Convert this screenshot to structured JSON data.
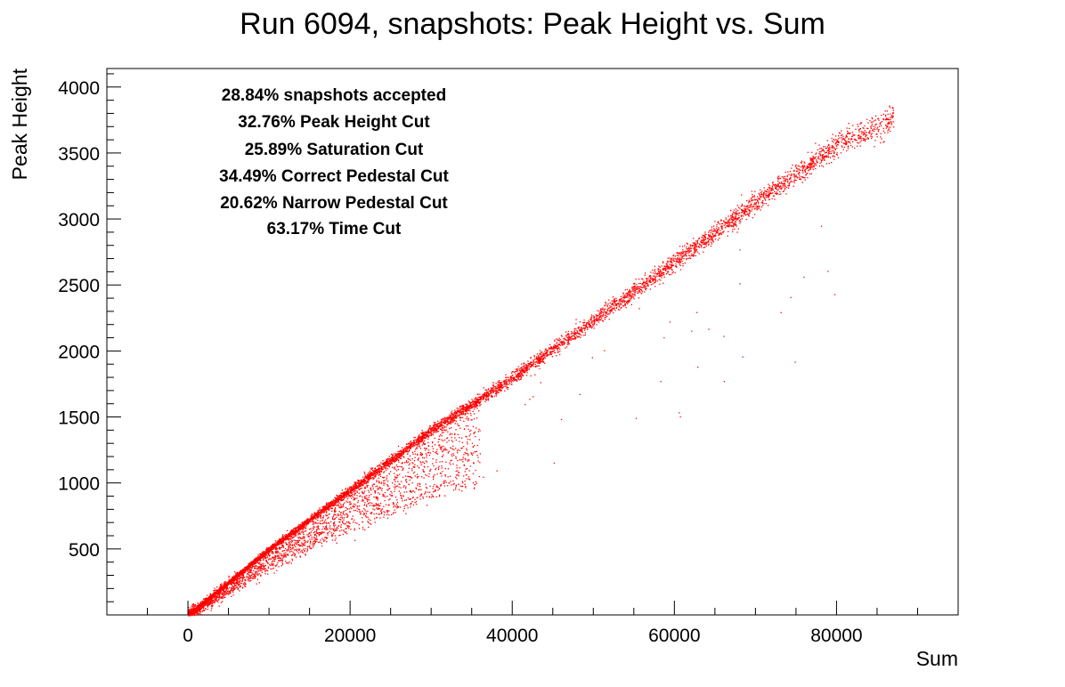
{
  "chart_data": {
    "type": "scatter",
    "title": "Run 6094, snapshots: Peak Height vs. Sum",
    "xlabel": "Sum",
    "ylabel": "Peak Height",
    "xlim": [
      -10000,
      95000
    ],
    "ylim": [
      0,
      4140
    ],
    "x_ticks": [
      0,
      20000,
      40000,
      60000,
      80000
    ],
    "x_tick_labels": [
      "0",
      "20000",
      "40000",
      "60000",
      "80000"
    ],
    "y_ticks": [
      500,
      1000,
      1500,
      2000,
      2500,
      3000,
      3500,
      4000
    ],
    "y_tick_labels": [
      "500",
      "1000",
      "1500",
      "2000",
      "2500",
      "3000",
      "3500",
      "4000"
    ],
    "grid": false,
    "legend": "none",
    "marker_color": "#ff0000",
    "annotations": [
      "28.84% snapshots accepted",
      "32.76% Peak Height Cut",
      "25.89% Saturation Cut",
      "34.49% Correct Pedestal Cut",
      "20.62% Narrow Pedestal Cut",
      "63.17% Time Cut"
    ],
    "main_band": {
      "description_points": [
        {
          "x": 0,
          "y": 0
        },
        {
          "x": 10000,
          "y": 500
        },
        {
          "x": 20000,
          "y": 950
        },
        {
          "x": 30000,
          "y": 1400
        },
        {
          "x": 40000,
          "y": 1800
        },
        {
          "x": 50000,
          "y": 2230
        },
        {
          "x": 60000,
          "y": 2680
        },
        {
          "x": 70000,
          "y": 3130
        },
        {
          "x": 80000,
          "y": 3560
        },
        {
          "x": 87000,
          "y": 3760
        }
      ]
    },
    "lower_branch": {
      "description_points": [
        {
          "x": 0,
          "y": 0
        },
        {
          "x": 10000,
          "y": 350
        },
        {
          "x": 20000,
          "y": 650
        },
        {
          "x": 30000,
          "y": 870
        },
        {
          "x": 36000,
          "y": 1000
        }
      ]
    }
  }
}
